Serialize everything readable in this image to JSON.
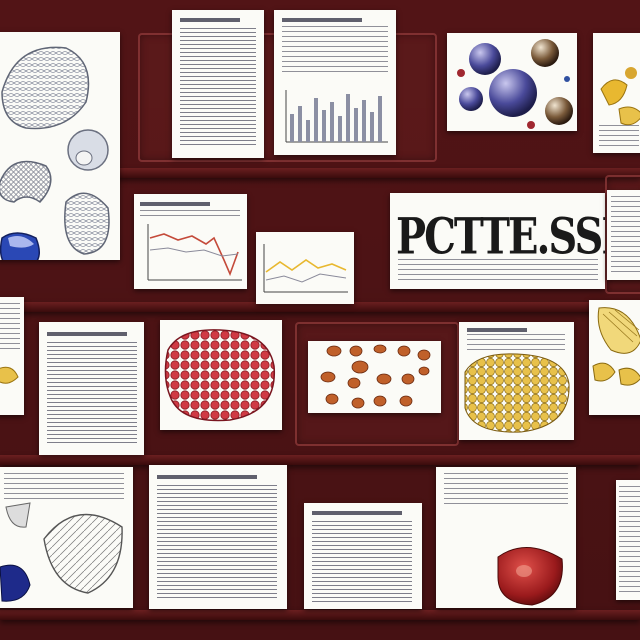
{
  "poster": {
    "title_text": "PCTTE.SSIICCE"
  },
  "colors": {
    "background": "#521416",
    "card": "#fbfbf7",
    "meat_red": "#c8343c",
    "yellow": "#e8c14a",
    "navy": "#1e2a8a"
  },
  "icons": {
    "brain": "brain-illustration-icon",
    "meat": "raw-meat-illustration-icon",
    "beans": "bean-cluster-icon",
    "spheres": "sphere-cluster-icon",
    "bar_chart": "bar-chart-icon",
    "line_chart": "line-chart-icon"
  }
}
